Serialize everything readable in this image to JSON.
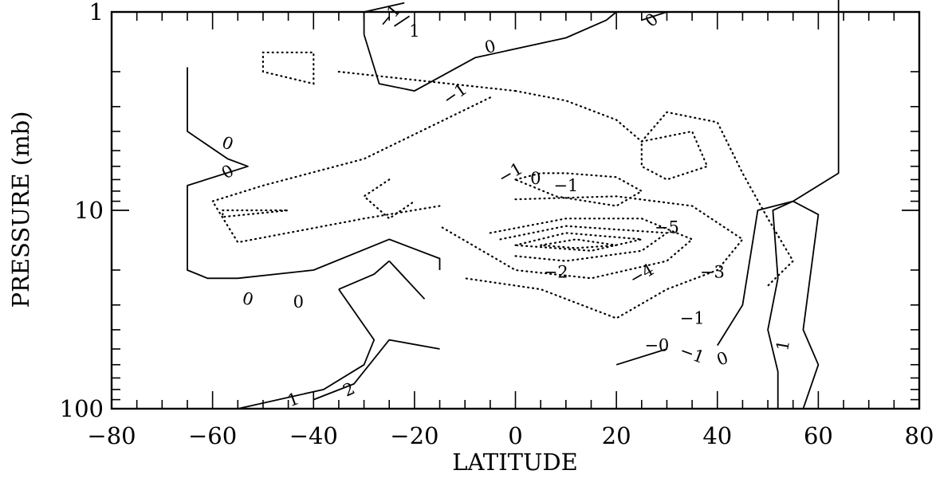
{
  "chart_data": {
    "type": "contour",
    "title": "",
    "xlabel": "LATITUDE",
    "ylabel": "PRESSURE (mb)",
    "xlim": [
      -80,
      80
    ],
    "ylim": [
      100,
      1
    ],
    "y_scale": "log",
    "y_reversed": true,
    "x_ticks": [
      -80,
      -60,
      -40,
      -20,
      0,
      20,
      40,
      60,
      80
    ],
    "x_tick_labels": [
      "−80",
      "−60",
      "−40",
      "−20",
      "0",
      "20",
      "40",
      "60",
      "80"
    ],
    "y_ticks": [
      1,
      10,
      100
    ],
    "y_tick_labels": [
      "1",
      "10",
      "100"
    ],
    "grid": false,
    "contour_style": {
      "positive_and_zero": "solid",
      "negative": "dotted"
    },
    "contours": [
      {
        "level": 0,
        "style": "solid",
        "points": [
          [
            -65,
            1.9
          ],
          [
            -65,
            4.0
          ],
          [
            -57,
            5.5
          ],
          [
            -53,
            6.0
          ],
          [
            -65,
            7.5
          ],
          [
            -65,
            10.5
          ],
          [
            -65,
            20
          ],
          [
            -61,
            22
          ],
          [
            -55,
            22
          ],
          [
            -40,
            20
          ],
          [
            -25,
            14
          ],
          [
            -15,
            17.5
          ],
          [
            -15,
            20
          ]
        ]
      },
      {
        "level": 0,
        "style": "solid",
        "points": [
          [
            -30,
            1.3
          ],
          [
            -30,
            1.0
          ],
          [
            -22,
            0.9
          ]
        ]
      },
      {
        "level": 0,
        "style": "solid",
        "points": [
          [
            -30,
            1.3
          ],
          [
            -27,
            2.3
          ],
          [
            -20,
            2.5
          ],
          [
            -8,
            1.7
          ],
          [
            10,
            1.35
          ],
          [
            18,
            1.1
          ],
          [
            20,
            1.0
          ]
        ]
      },
      {
        "level": 0,
        "style": "solid",
        "points": [
          [
            25,
            1.1
          ],
          [
            30,
            1.0
          ]
        ]
      },
      {
        "level": 0,
        "style": "solid",
        "points": [
          [
            -25,
            18
          ],
          [
            -18,
            28
          ]
        ]
      },
      {
        "level": 0,
        "style": "solid",
        "points": [
          [
            -25,
            18
          ],
          [
            -28,
            21
          ],
          [
            -35,
            25
          ]
        ]
      },
      {
        "level": 0,
        "style": "solid",
        "points": [
          [
            40,
            48
          ],
          [
            45,
            30
          ],
          [
            48,
            10
          ],
          [
            55,
            9
          ],
          [
            64,
            6.5
          ],
          [
            64,
            0.7
          ]
        ]
      },
      {
        "level": 1,
        "style": "solid",
        "points": [
          [
            -24,
            1.18
          ],
          [
            -21,
            1.05
          ]
        ]
      },
      {
        "level": 1,
        "style": "solid",
        "points": [
          [
            20,
            60
          ],
          [
            30,
            50
          ]
        ]
      },
      {
        "level": 1,
        "style": "solid",
        "points": [
          [
            52,
            100
          ],
          [
            52,
            65
          ],
          [
            50,
            40
          ],
          [
            52,
            22
          ],
          [
            51,
            10
          ],
          [
            55,
            9
          ],
          [
            60,
            10.5
          ],
          [
            57,
            40
          ],
          [
            60,
            60
          ],
          [
            57,
            100
          ]
        ]
      },
      {
        "level": 1,
        "style": "solid",
        "points": [
          [
            -55,
            100
          ],
          [
            -38,
            80
          ],
          [
            -30,
            60
          ],
          [
            -28,
            45
          ],
          [
            -35,
            25
          ]
        ]
      },
      {
        "level": 2,
        "style": "solid",
        "points": [
          [
            -40,
            90
          ],
          [
            -32,
            75
          ],
          [
            -25,
            45
          ],
          [
            -15,
            50
          ]
        ]
      },
      {
        "level": -1,
        "style": "dotted",
        "points": [
          [
            0,
            2.5
          ],
          [
            -35,
            2.0
          ]
        ]
      },
      {
        "level": -1,
        "style": "dotted",
        "points": [
          [
            0,
            2.5
          ],
          [
            10,
            2.8
          ],
          [
            20,
            3.5
          ],
          [
            25,
            4.5
          ],
          [
            30,
            3.2
          ],
          [
            40,
            3.6
          ],
          [
            45,
            6.5
          ],
          [
            50,
            11
          ],
          [
            55,
            18
          ],
          [
            50,
            24
          ]
        ]
      },
      {
        "level": -1,
        "style": "dotted",
        "points": [
          [
            -5,
            2.7
          ],
          [
            -30,
            5.5
          ],
          [
            -50,
            7.5
          ],
          [
            -60,
            9
          ],
          [
            -55,
            14.5
          ],
          [
            -30,
            11
          ],
          [
            -15,
            9.5
          ]
        ]
      },
      {
        "level": -1,
        "style": "dotted",
        "points": [
          [
            -25,
            7
          ],
          [
            -30,
            8.5
          ],
          [
            -25,
            11
          ],
          [
            -20,
            9
          ]
        ]
      },
      {
        "level": -1,
        "style": "dotted",
        "points": [
          [
            -58,
            10
          ],
          [
            -45,
            10
          ],
          [
            -58,
            10.8
          ],
          [
            -58,
            10
          ]
        ]
      },
      {
        "level": -1,
        "style": "dotted",
        "points": [
          [
            -50,
            2.0
          ],
          [
            -50,
            1.6
          ],
          [
            -40,
            1.6
          ],
          [
            -40,
            2.3
          ],
          [
            -50,
            2.0
          ]
        ]
      },
      {
        "level": -1,
        "style": "dotted",
        "points": [
          [
            25,
            4.5
          ],
          [
            35,
            4.0
          ],
          [
            38,
            6.0
          ],
          [
            30,
            7.0
          ],
          [
            25,
            6.0
          ],
          [
            25,
            4.5
          ]
        ]
      },
      {
        "level": -1,
        "style": "dotted",
        "points": [
          [
            0,
            8.8
          ],
          [
            20,
            8.5
          ],
          [
            35,
            9.5
          ],
          [
            45,
            14
          ],
          [
            40,
            20
          ],
          [
            30,
            25
          ],
          [
            20,
            35
          ],
          [
            5,
            25
          ],
          [
            -10,
            22
          ]
        ]
      },
      {
        "level": -1,
        "style": "dotted",
        "points": [
          [
            0,
            7.0
          ],
          [
            5,
            6.5
          ],
          [
            10,
            6.5
          ],
          [
            20,
            6.8
          ],
          [
            25,
            8.0
          ],
          [
            20,
            9.5
          ],
          [
            8,
            8.5
          ],
          [
            0,
            7.0
          ]
        ]
      },
      {
        "level": -2,
        "style": "dotted",
        "points": [
          [
            -5,
            13
          ],
          [
            10,
            11
          ],
          [
            25,
            11
          ],
          [
            35,
            14
          ],
          [
            30,
            18
          ],
          [
            15,
            22
          ],
          [
            0,
            20
          ],
          [
            -15,
            12
          ]
        ]
      },
      {
        "level": -3,
        "style": "dotted",
        "points": [
          [
            -3,
            14
          ],
          [
            10,
            12
          ],
          [
            30,
            13
          ],
          [
            25,
            16
          ],
          [
            10,
            18
          ],
          [
            0,
            17
          ]
        ]
      },
      {
        "level": -4,
        "style": "dotted",
        "points": [
          [
            0,
            15
          ],
          [
            10,
            13
          ],
          [
            25,
            14
          ],
          [
            15,
            16
          ],
          [
            0,
            15
          ]
        ]
      },
      {
        "level": -5,
        "style": "dotted",
        "points": [
          [
            5,
            15
          ],
          [
            12,
            14
          ],
          [
            20,
            15
          ],
          [
            12,
            15.5
          ],
          [
            5,
            15
          ]
        ]
      }
    ],
    "contour_labels": [
      {
        "text": "−1",
        "x": -25,
        "y": 1.05,
        "rotate": -50
      },
      {
        "text": "1",
        "x": -20,
        "y": 1.25,
        "rotate": 0
      },
      {
        "text": "0",
        "x": -5,
        "y": 1.5,
        "rotate": -15
      },
      {
        "text": "0",
        "x": 27,
        "y": 1.1,
        "rotate": -40
      },
      {
        "text": "−1",
        "x": -12,
        "y": 2.6,
        "rotate": -35
      },
      {
        "text": "0",
        "x": -57,
        "y": 4.6,
        "rotate": 20
      },
      {
        "text": "0",
        "x": -57,
        "y": 6.4,
        "rotate": -30
      },
      {
        "text": "−1",
        "x": -1,
        "y": 6.5,
        "rotate": -30
      },
      {
        "text": "0",
        "x": 4,
        "y": 6.9,
        "rotate": 0
      },
      {
        "text": "−1",
        "x": 10,
        "y": 7.5,
        "rotate": 0
      },
      {
        "text": "−5",
        "x": 30,
        "y": 12.2,
        "rotate": 0
      },
      {
        "text": "−2",
        "x": 8,
        "y": 20.5,
        "rotate": 0
      },
      {
        "text": "−4",
        "x": 25,
        "y": 21,
        "rotate": -30
      },
      {
        "text": "−3",
        "x": 39,
        "y": 20.5,
        "rotate": 0
      },
      {
        "text": "−1",
        "x": 35,
        "y": 35,
        "rotate": 0
      },
      {
        "text": "−0",
        "x": 28,
        "y": 48,
        "rotate": 0
      },
      {
        "text": "−1",
        "x": 35,
        "y": 53,
        "rotate": 20
      },
      {
        "text": "0",
        "x": 41,
        "y": 56,
        "rotate": -20
      },
      {
        "text": "0",
        "x": -53,
        "y": 28,
        "rotate": 15
      },
      {
        "text": "0",
        "x": -43,
        "y": 29,
        "rotate": 0
      },
      {
        "text": "1",
        "x": -44,
        "y": 90,
        "rotate": -20
      },
      {
        "text": "2",
        "x": -33,
        "y": 80,
        "rotate": -25
      },
      {
        "text": "1",
        "x": 53,
        "y": 48,
        "rotate": -80
      }
    ]
  }
}
